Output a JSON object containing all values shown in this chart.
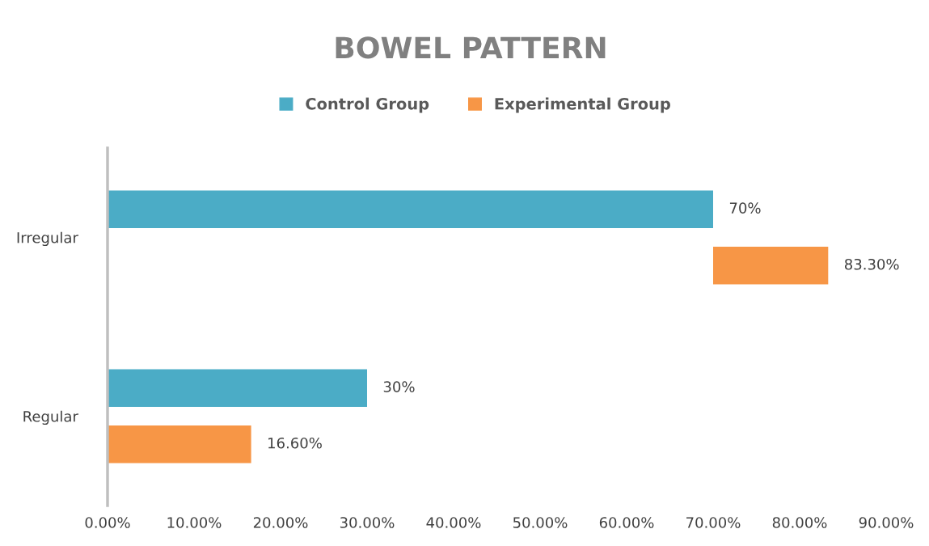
{
  "chart_data": {
    "type": "bar",
    "orientation": "horizontal",
    "title": "BOWEL PATTERN",
    "categories": [
      "Irregular",
      "Regular"
    ],
    "series": [
      {
        "name": "Control Group",
        "color": "#4bacc6",
        "values": [
          70,
          30
        ],
        "value_labels": [
          "70%",
          "30%"
        ]
      },
      {
        "name": "Experimental Group",
        "color": "#f79646",
        "values": [
          13.3,
          16.6
        ],
        "base": [
          70,
          0
        ],
        "value_labels": [
          "83.30%",
          "16.60%"
        ]
      }
    ],
    "xlim": [
      0,
      90
    ],
    "xticks": [
      {
        "value": 0,
        "label": "0.00%"
      },
      {
        "value": 10,
        "label": "10.00%"
      },
      {
        "value": 20,
        "label": "20.00%"
      },
      {
        "value": 30,
        "label": "30.00%"
      },
      {
        "value": 40,
        "label": "40.00%"
      },
      {
        "value": 50,
        "label": "50.00%"
      },
      {
        "value": 60,
        "label": "60.00%"
      },
      {
        "value": 70,
        "label": "70.00%"
      },
      {
        "value": 80,
        "label": "80.00%"
      },
      {
        "value": 90,
        "label": "90.00%"
      }
    ],
    "grid": false,
    "legend": "top"
  }
}
